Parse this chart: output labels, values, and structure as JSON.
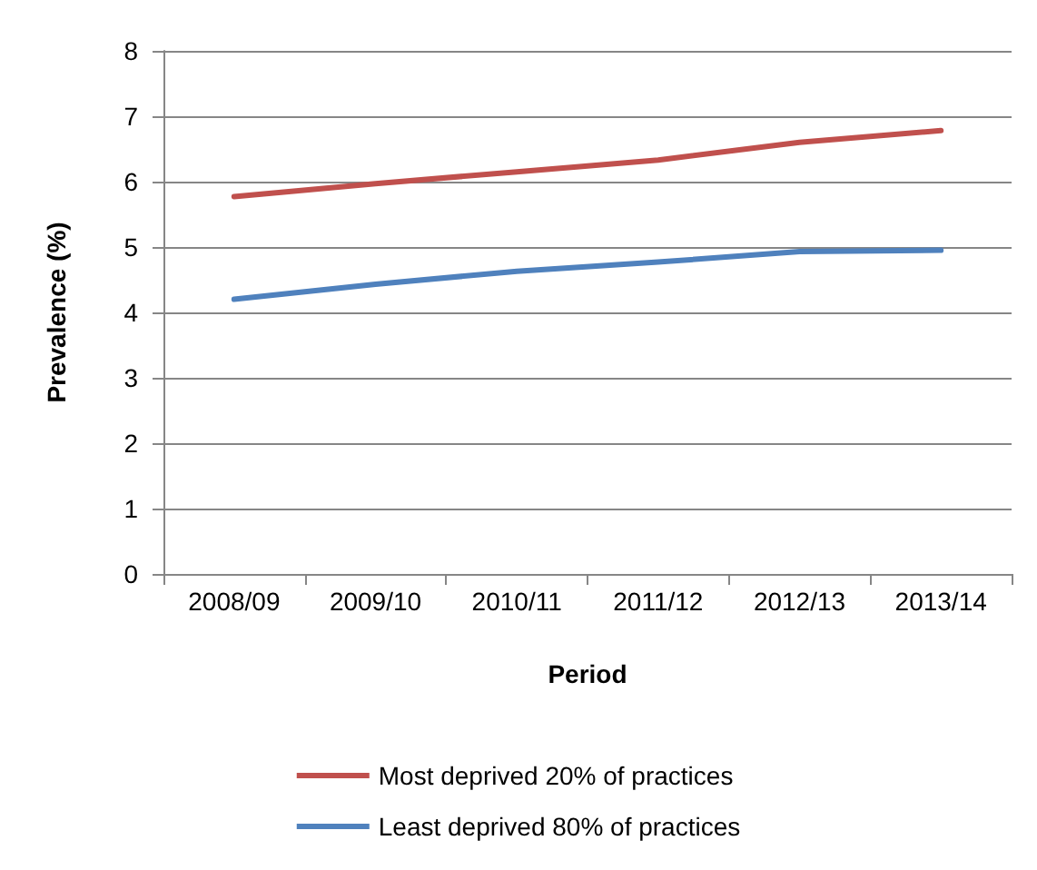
{
  "chart_data": {
    "type": "line",
    "xlabel": "Period",
    "ylabel": "Prevalence (%)",
    "categories": [
      "2008/09",
      "2009/10",
      "2010/11",
      "2011/12",
      "2012/13",
      "2013/14"
    ],
    "series": [
      {
        "name": "Most deprived 20% of practices",
        "color": "#c0504d",
        "values": [
          5.77,
          5.97,
          6.15,
          6.33,
          6.6,
          6.78
        ]
      },
      {
        "name": "Least deprived 80% of practices",
        "color": "#4f81bd",
        "values": [
          4.2,
          4.43,
          4.63,
          4.77,
          4.93,
          4.95
        ]
      }
    ],
    "ylim": [
      0,
      8
    ],
    "yticks": [
      0,
      1,
      2,
      3,
      4,
      5,
      6,
      7,
      8
    ],
    "grid": "y",
    "legend": "bottom",
    "marker": "none",
    "line_style": "solid"
  }
}
